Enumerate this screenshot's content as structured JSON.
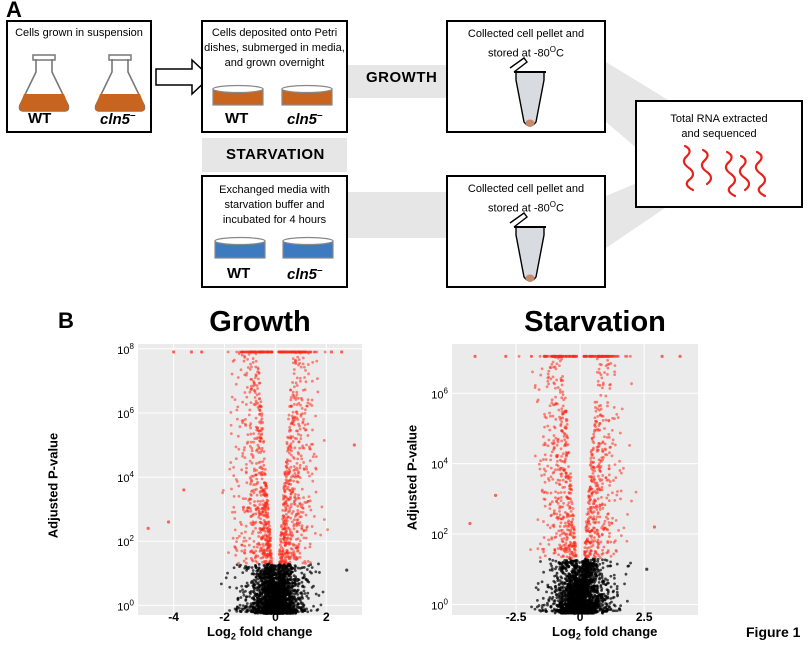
{
  "panel_a": {
    "letter": "A",
    "box_suspension": {
      "text": "Cells grown in suspension",
      "wt": "WT",
      "mutant": "cln5",
      "mutant_sup": "–"
    },
    "box_petri": {
      "line1": "Cells deposited onto Petri",
      "line2": "dishes, submerged in media,",
      "line3": "and grown overnight",
      "wt": "WT",
      "mutant": "cln5",
      "mutant_sup": "–"
    },
    "box_starve": {
      "line1": "Exchanged media with",
      "line2": "starvation buffer and",
      "line3": "incubated for 4 hours",
      "wt": "WT",
      "mutant": "cln5",
      "mutant_sup": "–"
    },
    "growth_label": "GROWTH",
    "starvation_label": "STARVATION",
    "pellet_top": {
      "line1": "Collected cell pellet and",
      "line2_pre": "stored at -80",
      "line2_sup": "O",
      "line2_post": "C"
    },
    "pellet_bottom": {
      "line1": "Collected cell pellet and",
      "line2_pre": "stored at -80",
      "line2_sup": "O",
      "line2_post": "C"
    },
    "rna_box": {
      "line1": "Total RNA extracted",
      "line2": "and sequenced"
    },
    "colors": {
      "media_growth": "#c8641e",
      "media_starve": "#3d7ac0",
      "rna": "#e8201c",
      "band": "#e6e6e6"
    }
  },
  "panel_b": {
    "letter": "B"
  },
  "figure_label": "Figure 1",
  "chart_data": [
    {
      "type": "scatter",
      "title": "Growth",
      "xlabel_pre": "Log",
      "xlabel_sub": "2",
      "xlabel_post": " fold change",
      "ylabel": "Adjusted P-value",
      "x_ticks": [
        -4,
        -2,
        0,
        2
      ],
      "x_tick_labels": [
        "-4",
        "-2",
        "0",
        "2"
      ],
      "xlim": [
        -5.4,
        3.4
      ],
      "y_scale": "log10",
      "y_ticks_exp": [
        0,
        2,
        4,
        6,
        8
      ],
      "y_tick_base": "10",
      "ylim_exp": [
        -0.3,
        8.15
      ],
      "cap_exp": 7.9,
      "significance_exp": 1.3,
      "point_count": 2600,
      "sig_color": "#ff2a1a",
      "nonsig_color": "#000000",
      "background": "#ebebeb",
      "grid": true,
      "outliers": [
        {
          "x": -5.0,
          "y_exp": 2.4
        },
        {
          "x": -4.2,
          "y_exp": 2.6
        },
        {
          "x": -3.6,
          "y_exp": 3.6
        },
        {
          "x": 3.1,
          "y_exp": 5.0
        },
        {
          "x": 2.6,
          "y_exp": 7.9
        },
        {
          "x": 2.2,
          "y_exp": 7.9
        },
        {
          "x": -4.0,
          "y_exp": 7.9
        },
        {
          "x": -3.3,
          "y_exp": 7.9
        },
        {
          "x": -2.9,
          "y_exp": 7.9
        },
        {
          "x": 2.8,
          "y_exp": 1.1
        }
      ],
      "seed": 17
    },
    {
      "type": "scatter",
      "title": "Starvation",
      "xlabel_pre": "Log",
      "xlabel_sub": "2",
      "xlabel_post": " fold change",
      "ylabel": "Adjusted P-value",
      "x_ticks": [
        -2.5,
        0,
        2.5
      ],
      "x_tick_labels": [
        "-2.5",
        "0",
        "2.5"
      ],
      "xlim": [
        -5.0,
        4.6
      ],
      "y_scale": "log10",
      "y_ticks_exp": [
        0,
        2,
        4,
        6
      ],
      "y_tick_base": "10",
      "ylim_exp": [
        -0.3,
        7.4
      ],
      "cap_exp": 7.05,
      "significance_exp": 1.3,
      "point_count": 2200,
      "sig_color": "#ff2a1a",
      "nonsig_color": "#000000",
      "background": "#ebebeb",
      "grid": true,
      "outliers": [
        {
          "x": -4.3,
          "y_exp": 2.3
        },
        {
          "x": -3.3,
          "y_exp": 3.1
        },
        {
          "x": -2.9,
          "y_exp": 7.05
        },
        {
          "x": -4.1,
          "y_exp": 7.05
        },
        {
          "x": 3.2,
          "y_exp": 7.05
        },
        {
          "x": 3.9,
          "y_exp": 7.05
        },
        {
          "x": 2.9,
          "y_exp": 2.2
        },
        {
          "x": 2.6,
          "y_exp": 1.0
        }
      ],
      "seed": 41
    }
  ]
}
